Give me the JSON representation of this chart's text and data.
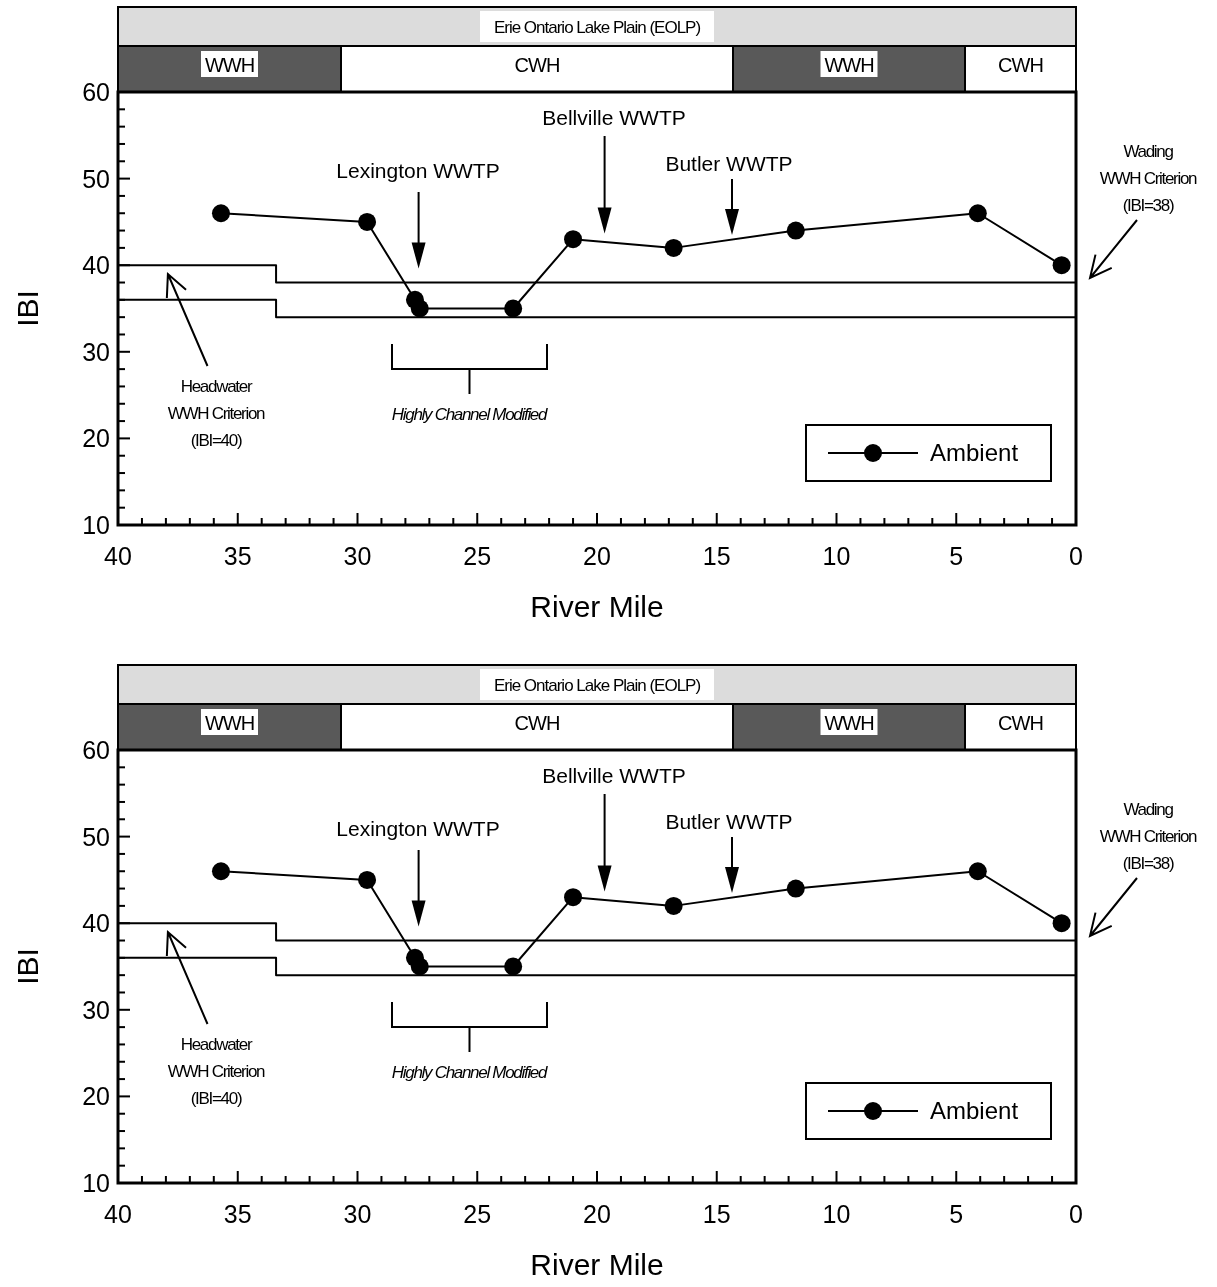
{
  "chart_data": [
    {
      "type": "line",
      "title": "Erie Ontario Lake Plain (EOLP)",
      "xlabel": "River Mile",
      "ylabel": "IBI",
      "xlim": [
        40,
        0
      ],
      "ylim": [
        10,
        60
      ],
      "xticks": [
        40,
        {
          "value": 39,
          "label": null
        },
        {
          "value": 38,
          "label": null
        },
        {
          "value": 37,
          "label": null
        },
        {
          "value": 36,
          "label": null
        },
        35,
        {
          "value": 34,
          "label": null
        },
        {
          "value": 33,
          "label": null
        },
        {
          "value": 32,
          "label": null
        },
        {
          "value": 31,
          "label": null
        },
        30,
        {
          "value": 29,
          "label": null
        },
        {
          "value": 28,
          "label": null
        },
        {
          "value": 27,
          "label": null
        },
        {
          "value": 26,
          "label": null
        },
        25,
        {
          "value": 24,
          "label": null
        },
        {
          "value": 23,
          "label": null
        },
        {
          "value": 22,
          "label": null
        },
        {
          "value": 21,
          "label": null
        },
        20,
        {
          "value": 19,
          "label": null
        },
        {
          "value": 18,
          "label": null
        },
        {
          "value": 17,
          "label": null
        },
        {
          "value": 16,
          "label": null
        },
        15,
        {
          "value": 14,
          "label": null
        },
        {
          "value": 13,
          "label": null
        },
        {
          "value": 12,
          "label": null
        },
        {
          "value": 11,
          "label": null
        },
        10,
        {
          "value": 9,
          "label": null
        },
        {
          "value": 8,
          "label": null
        },
        {
          "value": 7,
          "label": null
        },
        {
          "value": 6,
          "label": null
        },
        5,
        {
          "value": 4,
          "label": null
        },
        {
          "value": 3,
          "label": null
        },
        {
          "value": 2,
          "label": null
        },
        {
          "value": 1,
          "label": null
        },
        0
      ],
      "yticks": [
        10,
        {
          "value": 12,
          "label": null
        },
        {
          "value": 14,
          "label": null
        },
        {
          "value": 16,
          "label": null
        },
        {
          "value": 18,
          "label": null
        },
        20,
        {
          "value": 22,
          "label": null
        },
        {
          "value": 24,
          "label": null
        },
        {
          "value": 26,
          "label": null
        },
        {
          "value": 28,
          "label": null
        },
        30,
        {
          "value": 32,
          "label": null
        },
        {
          "value": 34,
          "label": null
        },
        {
          "value": 36,
          "label": null
        },
        {
          "value": 38,
          "label": null
        },
        40,
        {
          "value": 42,
          "label": null
        },
        {
          "value": 44,
          "label": null
        },
        {
          "value": 46,
          "label": null
        },
        {
          "value": 48,
          "label": null
        },
        50,
        {
          "value": 52,
          "label": null
        },
        {
          "value": 54,
          "label": null
        },
        {
          "value": 56,
          "label": null
        },
        {
          "value": 58,
          "label": null
        },
        60
      ],
      "marker": "circle",
      "legend": "bottom right",
      "series": [
        {
          "name": "Ambient",
          "color": "#000000",
          "x": [
            35.7,
            29.6,
            27.6,
            27.4,
            23.5,
            21.0,
            16.8,
            11.7,
            4.1,
            0.6
          ],
          "values": [
            46,
            45,
            36,
            35,
            35,
            43,
            42,
            44,
            46,
            40
          ]
        },
        {
          "color": "#000000",
          "marker": "none",
          "x": [
            40,
            33.4,
            33.4,
            0
          ],
          "values": [
            40,
            40,
            38,
            38
          ]
        },
        {
          "color": "#000000",
          "marker": "none",
          "x": [
            40,
            33.4,
            33.4,
            0
          ],
          "values": [
            36,
            36,
            34,
            34
          ]
        }
      ],
      "annotations": [
        "Lexington WWTP",
        "Bellville WWTP",
        "Butler WWTP",
        "Headwater\nWWH Criterion\n(IBI=40)",
        "Wading\nWWH Criterion\n(IBI=38)",
        "Highly Channel Modified",
        "WWH",
        "CWH",
        "WWH",
        "CWH"
      ]
    },
    {
      "type": "line",
      "title": "Erie Ontario Lake Plain (EOLP)",
      "xlabel": "River Mile",
      "ylabel": "IBI",
      "xlim": [
        40,
        0
      ],
      "ylim": [
        10,
        60
      ],
      "xticks": [
        40,
        {
          "value": 39,
          "label": null
        },
        {
          "value": 38,
          "label": null
        },
        {
          "value": 37,
          "label": null
        },
        {
          "value": 36,
          "label": null
        },
        35,
        {
          "value": 34,
          "label": null
        },
        {
          "value": 33,
          "label": null
        },
        {
          "value": 32,
          "label": null
        },
        {
          "value": 31,
          "label": null
        },
        30,
        {
          "value": 29,
          "label": null
        },
        {
          "value": 28,
          "label": null
        },
        {
          "value": 27,
          "label": null
        },
        {
          "value": 26,
          "label": null
        },
        25,
        {
          "value": 24,
          "label": null
        },
        {
          "value": 23,
          "label": null
        },
        {
          "value": 22,
          "label": null
        },
        {
          "value": 21,
          "label": null
        },
        20,
        {
          "value": 19,
          "label": null
        },
        {
          "value": 18,
          "label": null
        },
        {
          "value": 17,
          "label": null
        },
        {
          "value": 16,
          "label": null
        },
        15,
        {
          "value": 14,
          "label": null
        },
        {
          "value": 13,
          "label": null
        },
        {
          "value": 12,
          "label": null
        },
        {
          "value": 11,
          "label": null
        },
        10,
        {
          "value": 9,
          "label": null
        },
        {
          "value": 8,
          "label": null
        },
        {
          "value": 7,
          "label": null
        },
        {
          "value": 6,
          "label": null
        },
        5,
        {
          "value": 4,
          "label": null
        },
        {
          "value": 3,
          "label": null
        },
        {
          "value": 2,
          "label": null
        },
        {
          "value": 1,
          "label": null
        },
        0
      ],
      "yticks": [
        10,
        {
          "value": 12,
          "label": null
        },
        {
          "value": 14,
          "label": null
        },
        {
          "value": 16,
          "label": null
        },
        {
          "value": 18,
          "label": null
        },
        20,
        {
          "value": 22,
          "label": null
        },
        {
          "value": 24,
          "label": null
        },
        {
          "value": 26,
          "label": null
        },
        {
          "value": 28,
          "label": null
        },
        30,
        {
          "value": 32,
          "label": null
        },
        {
          "value": 34,
          "label": null
        },
        {
          "value": 36,
          "label": null
        },
        {
          "value": 38,
          "label": null
        },
        40,
        {
          "value": 42,
          "label": null
        },
        {
          "value": 44,
          "label": null
        },
        {
          "value": 46,
          "label": null
        },
        {
          "value": 48,
          "label": null
        },
        50,
        {
          "value": 52,
          "label": null
        },
        {
          "value": 54,
          "label": null
        },
        {
          "value": 56,
          "label": null
        },
        {
          "value": 58,
          "label": null
        },
        60
      ],
      "marker": "circle",
      "legend": "bottom right",
      "series": [
        {
          "name": "Ambient",
          "color": "#000000",
          "x": [
            35.7,
            29.6,
            27.6,
            27.4,
            23.5,
            21.0,
            16.8,
            11.7,
            4.1,
            0.6
          ],
          "values": [
            46,
            45,
            36,
            35,
            35,
            43,
            42,
            44,
            46,
            40
          ]
        },
        {
          "color": "#000000",
          "marker": "none",
          "x": [
            40,
            33.4,
            33.4,
            0
          ],
          "values": [
            40,
            40,
            38,
            38
          ]
        },
        {
          "color": "#000000",
          "marker": "none",
          "x": [
            40,
            33.4,
            33.4,
            0
          ],
          "values": [
            36,
            36,
            34,
            34
          ]
        }
      ],
      "annotations": [
        "Lexington WWTP",
        "Bellville WWTP",
        "Butler WWTP",
        "Headwater\nWWH Criterion\n(IBI=40)",
        "Wading\nWWH Criterion\n(IBI=38)",
        "Highly Channel Modified",
        "WWH",
        "CWH",
        "WWH",
        "CWH"
      ]
    }
  ]
}
